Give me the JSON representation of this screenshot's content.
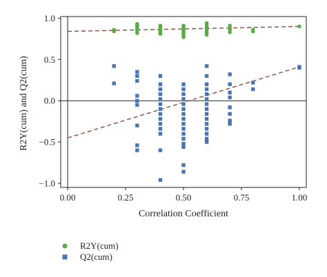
{
  "chart_data": {
    "type": "scatter",
    "xlabel": "Correlation Coefficient",
    "ylabel": "R2Y(cum) and Q2(cum)",
    "xlim": [
      -0.03,
      1.03
    ],
    "ylim": [
      -1.05,
      1.02
    ],
    "xticks": [
      0.0,
      0.25,
      0.5,
      0.75,
      1.0
    ],
    "xtick_labels": [
      "0.00",
      "0.25",
      "0.50",
      "0.75",
      "1.00"
    ],
    "yticks": [
      -1.0,
      -0.5,
      0.0,
      0.5,
      1.0
    ],
    "ytick_labels": [
      "−1.0",
      "−0.5",
      "0.0",
      "0.5",
      "1.0"
    ],
    "grid": false,
    "legend": "bottom-left",
    "series": [
      {
        "name": "R2Y(cum)",
        "color": "#5aab46",
        "marker": "circle",
        "points": [
          [
            0.2,
            0.84
          ],
          [
            0.2,
            0.86
          ],
          [
            0.3,
            0.82
          ],
          [
            0.3,
            0.85
          ],
          [
            0.3,
            0.87
          ],
          [
            0.3,
            0.89
          ],
          [
            0.3,
            0.91
          ],
          [
            0.3,
            0.93
          ],
          [
            0.4,
            0.81
          ],
          [
            0.4,
            0.83
          ],
          [
            0.4,
            0.85
          ],
          [
            0.4,
            0.87
          ],
          [
            0.4,
            0.89
          ],
          [
            0.4,
            0.91
          ],
          [
            0.5,
            0.77
          ],
          [
            0.5,
            0.79
          ],
          [
            0.5,
            0.81
          ],
          [
            0.5,
            0.83
          ],
          [
            0.5,
            0.85
          ],
          [
            0.5,
            0.87
          ],
          [
            0.5,
            0.89
          ],
          [
            0.5,
            0.91
          ],
          [
            0.6,
            0.8
          ],
          [
            0.6,
            0.82
          ],
          [
            0.6,
            0.84
          ],
          [
            0.6,
            0.86
          ],
          [
            0.6,
            0.88
          ],
          [
            0.6,
            0.9
          ],
          [
            0.6,
            0.92
          ],
          [
            0.6,
            0.94
          ],
          [
            0.7,
            0.83
          ],
          [
            0.7,
            0.86
          ],
          [
            0.7,
            0.88
          ],
          [
            0.7,
            0.91
          ],
          [
            0.8,
            0.84
          ],
          [
            0.8,
            0.86
          ],
          [
            1.0,
            0.9
          ]
        ]
      },
      {
        "name": "Q2(cum)",
        "color": "#4a74b2",
        "marker": "square",
        "points": [
          [
            0.2,
            0.42
          ],
          [
            0.2,
            0.21
          ],
          [
            0.3,
            0.35
          ],
          [
            0.3,
            0.3
          ],
          [
            0.3,
            0.24
          ],
          [
            0.3,
            0.06
          ],
          [
            0.3,
            0.0
          ],
          [
            0.3,
            -0.05
          ],
          [
            0.3,
            -0.3
          ],
          [
            0.3,
            -0.54
          ],
          [
            0.3,
            -0.6
          ],
          [
            0.4,
            0.3
          ],
          [
            0.4,
            0.2
          ],
          [
            0.4,
            0.14
          ],
          [
            0.4,
            0.08
          ],
          [
            0.4,
            0.02
          ],
          [
            0.4,
            -0.04
          ],
          [
            0.4,
            -0.1
          ],
          [
            0.4,
            -0.16
          ],
          [
            0.4,
            -0.22
          ],
          [
            0.4,
            -0.28
          ],
          [
            0.4,
            -0.34
          ],
          [
            0.4,
            -0.4
          ],
          [
            0.4,
            -0.6
          ],
          [
            0.4,
            -0.96
          ],
          [
            0.5,
            0.2
          ],
          [
            0.5,
            0.14
          ],
          [
            0.5,
            0.08
          ],
          [
            0.5,
            0.02
          ],
          [
            0.5,
            -0.04
          ],
          [
            0.5,
            -0.1
          ],
          [
            0.5,
            -0.16
          ],
          [
            0.5,
            -0.22
          ],
          [
            0.5,
            -0.28
          ],
          [
            0.5,
            -0.34
          ],
          [
            0.5,
            -0.4
          ],
          [
            0.5,
            -0.46
          ],
          [
            0.5,
            -0.52
          ],
          [
            0.5,
            -0.56
          ],
          [
            0.5,
            -0.78
          ],
          [
            0.5,
            -0.86
          ],
          [
            0.6,
            0.42
          ],
          [
            0.6,
            0.3
          ],
          [
            0.6,
            0.2
          ],
          [
            0.6,
            0.14
          ],
          [
            0.6,
            0.08
          ],
          [
            0.6,
            0.02
          ],
          [
            0.6,
            -0.04
          ],
          [
            0.6,
            -0.1
          ],
          [
            0.6,
            -0.16
          ],
          [
            0.6,
            -0.22
          ],
          [
            0.6,
            -0.28
          ],
          [
            0.6,
            -0.34
          ],
          [
            0.6,
            -0.4
          ],
          [
            0.6,
            -0.46
          ],
          [
            0.6,
            -0.5
          ],
          [
            0.7,
            0.32
          ],
          [
            0.7,
            0.2
          ],
          [
            0.7,
            0.1
          ],
          [
            0.7,
            0.04
          ],
          [
            0.7,
            -0.08
          ],
          [
            0.7,
            -0.16
          ],
          [
            0.7,
            -0.24
          ],
          [
            0.7,
            -0.28
          ],
          [
            0.8,
            0.22
          ],
          [
            0.8,
            0.14
          ],
          [
            1.0,
            0.41
          ],
          [
            1.0,
            0.4
          ]
        ]
      }
    ],
    "trendlines": [
      {
        "name": "R2Y(cum) trend",
        "color": "#8a4a3a",
        "from": [
          0.0,
          0.84
        ],
        "to": [
          1.0,
          0.9
        ]
      },
      {
        "name": "Q2(cum) trend",
        "color": "#8a4a3a",
        "from": [
          0.0,
          -0.45
        ],
        "to": [
          1.0,
          0.41
        ]
      }
    ]
  },
  "legend": {
    "items": [
      {
        "label": "R2Y(cum)",
        "color": "#5aab46",
        "marker": "circle"
      },
      {
        "label": "Q2(cum)",
        "color": "#4a74b2",
        "marker": "square"
      }
    ]
  }
}
